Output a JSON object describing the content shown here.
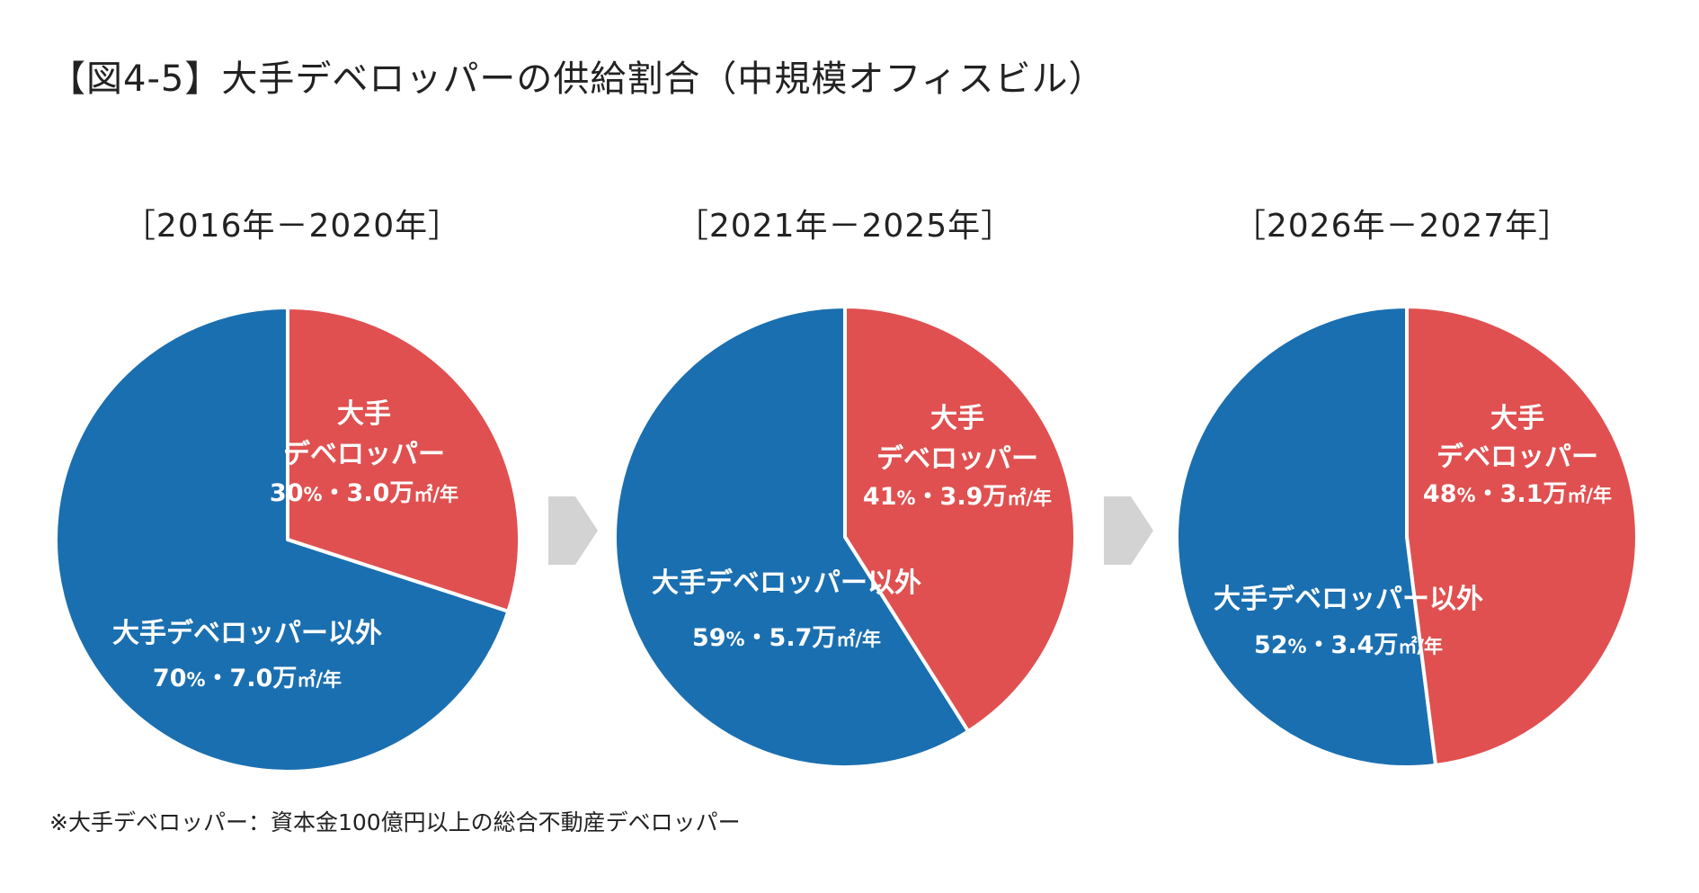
{
  "title": "【図4-5】大手デベロッパーの供給割合（中規模オフィスビル）",
  "footnote": "※大手デベロッパー：資本金100億円以上の総合不動産デベロッパー",
  "colors": {
    "major": "#E05050",
    "other": "#1A6FB0",
    "arrow": "#D3D3D3"
  },
  "chart_data": [
    {
      "type": "pie",
      "title": "［2016年－2020年］",
      "slices": [
        {
          "name": "大手デベロッパー",
          "label_lines": [
            "大手",
            "デベロッパー"
          ],
          "percent": 30,
          "value": 3.0,
          "value_text": "30%・3.0万㎡/年"
        },
        {
          "name": "大手デベロッパー以外",
          "label_lines": [
            "大手デベロッパー以外"
          ],
          "percent": 70,
          "value": 7.0,
          "value_text": "70%・7.0万㎡/年"
        }
      ]
    },
    {
      "type": "pie",
      "title": "［2021年－2025年］",
      "slices": [
        {
          "name": "大手デベロッパー",
          "label_lines": [
            "大手",
            "デベロッパー"
          ],
          "percent": 41,
          "value": 3.9,
          "value_text": "41%・3.9万㎡/年"
        },
        {
          "name": "大手デベロッパー以外",
          "label_lines": [
            "大手デベロッパー以外"
          ],
          "percent": 59,
          "value": 5.7,
          "value_text": "59%・5.7万㎡/年"
        }
      ]
    },
    {
      "type": "pie",
      "title": "［2026年－2027年］",
      "slices": [
        {
          "name": "大手デベロッパー",
          "label_lines": [
            "大手",
            "デベロッパー"
          ],
          "percent": 48,
          "value": 3.1,
          "value_text": "48%・3.1万㎡/年"
        },
        {
          "name": "大手デベロッパー以外",
          "label_lines": [
            "大手デベロッパー以外"
          ],
          "percent": 52,
          "value": 3.4,
          "value_text": "52%・3.4万㎡/年"
        }
      ]
    }
  ]
}
